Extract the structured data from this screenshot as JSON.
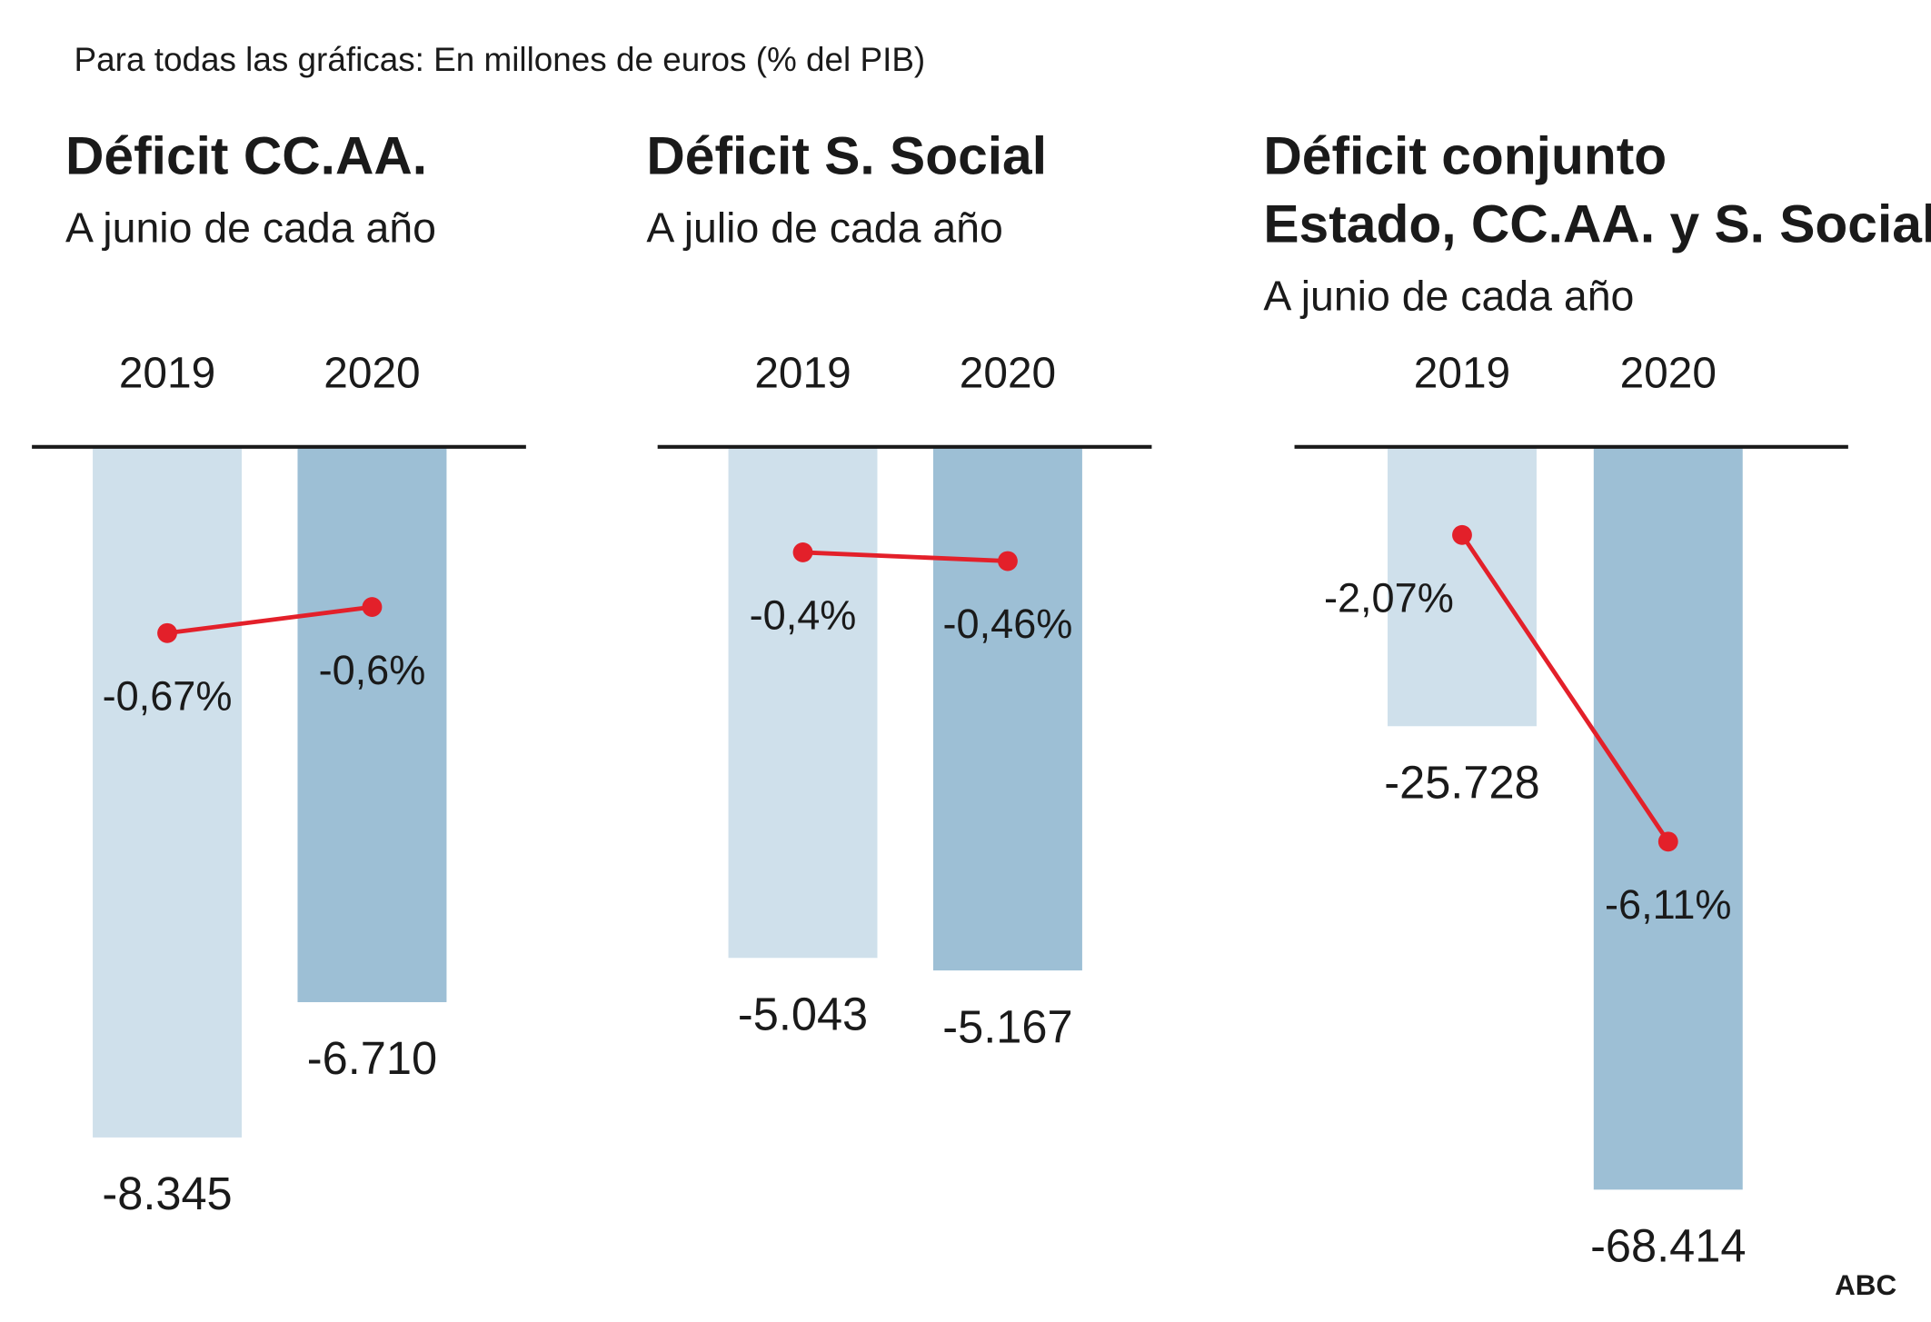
{
  "note": "Para todas las gráficas: En millones de euros (% del PIB)",
  "brand": "ABC",
  "colors": {
    "bar_2019": "#cfe0eb",
    "bar_2020": "#9dbfd5",
    "line": "#e3202a",
    "axis": "#1a1a1a"
  },
  "chart_data": [
    {
      "type": "bar",
      "title": [
        "Déficit CC.AA."
      ],
      "subtitle": "A junio de cada año",
      "categories": [
        "2019",
        "2020"
      ],
      "values": [
        -8345,
        -6710
      ],
      "value_labels": [
        "-8.345",
        "-6.710"
      ],
      "ylim": [
        -9000,
        0
      ],
      "line_series": {
        "type": "line",
        "values": [
          -0.67,
          -0.6
        ],
        "labels": [
          "-0,67%",
          "-0,6%"
        ]
      }
    },
    {
      "type": "bar",
      "title": [
        "Déficit S. Social"
      ],
      "subtitle": "A julio de cada año",
      "categories": [
        "2019",
        "2020"
      ],
      "values": [
        -5043,
        -5167
      ],
      "value_labels": [
        "-5.043",
        "-5.167"
      ],
      "ylim": [
        -7350,
        0
      ],
      "line_series": {
        "type": "line",
        "values": [
          -0.4,
          -0.46
        ],
        "labels": [
          "-0,4%",
          "-0,46%"
        ]
      }
    },
    {
      "type": "bar",
      "title": [
        "Déficit conjunto",
        "Estado, CC.AA. y S. Social"
      ],
      "subtitle": "A junio de cada año",
      "categories": [
        "2019",
        "2020"
      ],
      "values": [
        -25728,
        -68414
      ],
      "value_labels": [
        "-25.728",
        "-68.414"
      ],
      "ylim": [
        -68600,
        0
      ],
      "line_series": {
        "type": "line",
        "values": [
          -2.07,
          -6.11
        ],
        "labels": [
          "-2,07%",
          "-6,11%"
        ]
      }
    }
  ]
}
